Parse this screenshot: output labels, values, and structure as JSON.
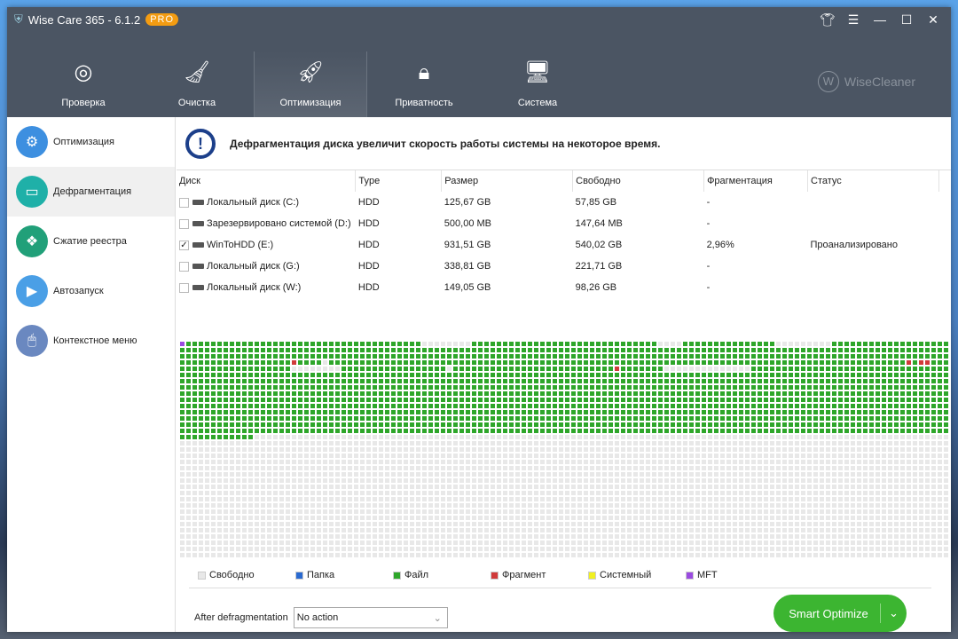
{
  "app": {
    "title": "Wise Care 365 - 6.1.2",
    "badge": "PRO",
    "brand": "WiseCleaner"
  },
  "nav": [
    {
      "label": "Проверка",
      "icon": "radar-icon"
    },
    {
      "label": "Очистка",
      "icon": "broom-icon"
    },
    {
      "label": "Оптимизация",
      "icon": "rocket-icon",
      "active": true
    },
    {
      "label": "Приватность",
      "icon": "shield-lock-icon"
    },
    {
      "label": "Система",
      "icon": "monitor-icon"
    }
  ],
  "sidebar": [
    {
      "label": "Оптимизация",
      "color": "#3d8fe0",
      "icon": "gear-icon"
    },
    {
      "label": "Дефрагментация",
      "color": "#1fb0a8",
      "icon": "drive-icon",
      "active": true
    },
    {
      "label": "Сжатие реестра",
      "color": "#21a079",
      "icon": "registry-icon"
    },
    {
      "label": "Автозапуск",
      "color": "#4a9fe6",
      "icon": "play-icon"
    },
    {
      "label": "Контекстное меню",
      "color": "#6a88c0",
      "icon": "mouse-icon"
    }
  ],
  "banner": "Дефрагментация диска увеличит скорость работы системы на некоторое время.",
  "table": {
    "headers": [
      "Диск",
      "Type",
      "Размер",
      "Свободно",
      "Фрагментация",
      "Статус"
    ],
    "rows": [
      {
        "checked": false,
        "name": "Локальный диск (C:)",
        "type": "HDD",
        "size": "125,67 GB",
        "free": "57,85 GB",
        "frag": "-",
        "status": ""
      },
      {
        "checked": false,
        "name": "Зарезервировано системой (D:)",
        "type": "HDD",
        "size": "500,00 MB",
        "free": "147,64 MB",
        "frag": "-",
        "status": ""
      },
      {
        "checked": true,
        "name": "WinToHDD (E:)",
        "type": "HDD",
        "size": "931,51 GB",
        "free": "540,02 GB",
        "frag": "2,96%",
        "status": "Проанализировано"
      },
      {
        "checked": false,
        "name": "Локальный диск (G:)",
        "type": "HDD",
        "size": "338,81 GB",
        "free": "221,71 GB",
        "frag": "-",
        "status": ""
      },
      {
        "checked": false,
        "name": "Локальный диск (W:)",
        "type": "HDD",
        "size": "149,05 GB",
        "free": "98,26 GB",
        "frag": "-",
        "status": ""
      }
    ]
  },
  "cluster_map": {
    "columns": 124,
    "rows": 35,
    "file_blocks": 1872,
    "mft_blocks": [
      0
    ],
    "free_ranges": [
      [
        39,
        46
      ],
      [
        77,
        80
      ],
      [
        96,
        104
      ],
      [
        395,
        395
      ],
      [
        514,
        521
      ],
      [
        539,
        539
      ],
      [
        574,
        587
      ]
    ],
    "fragment_blocks": [
      390,
      489,
      491,
      492,
      566
    ]
  },
  "legend": [
    {
      "label": "Свободно",
      "color": "#e8e8e8"
    },
    {
      "label": "Папка",
      "color": "#2a6ad0"
    },
    {
      "label": "Файл",
      "color": "#2ea62a"
    },
    {
      "label": "Фрагмент",
      "color": "#d03a3a"
    },
    {
      "label": "Системный",
      "color": "#f0f020"
    },
    {
      "label": "MFT",
      "color": "#9a4ae0"
    }
  ],
  "footer": {
    "after_label": "After defragmentation",
    "after_value": "No action",
    "smart": "Smart Optimize"
  }
}
